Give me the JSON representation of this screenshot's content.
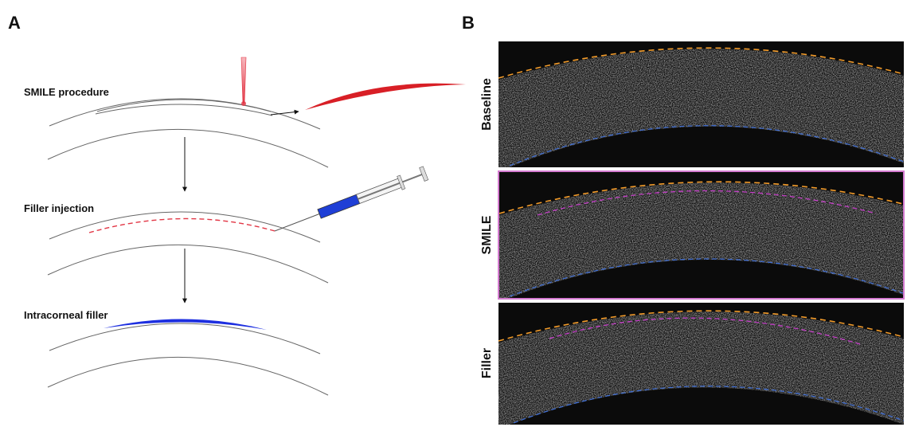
{
  "panel_a": {
    "label": "A",
    "steps": [
      "SMILE procedure",
      "Filler injection",
      "Intracorneal filler"
    ]
  },
  "panel_b": {
    "label": "B",
    "images": [
      "Baseline",
      "SMILE",
      "Filler"
    ]
  }
}
